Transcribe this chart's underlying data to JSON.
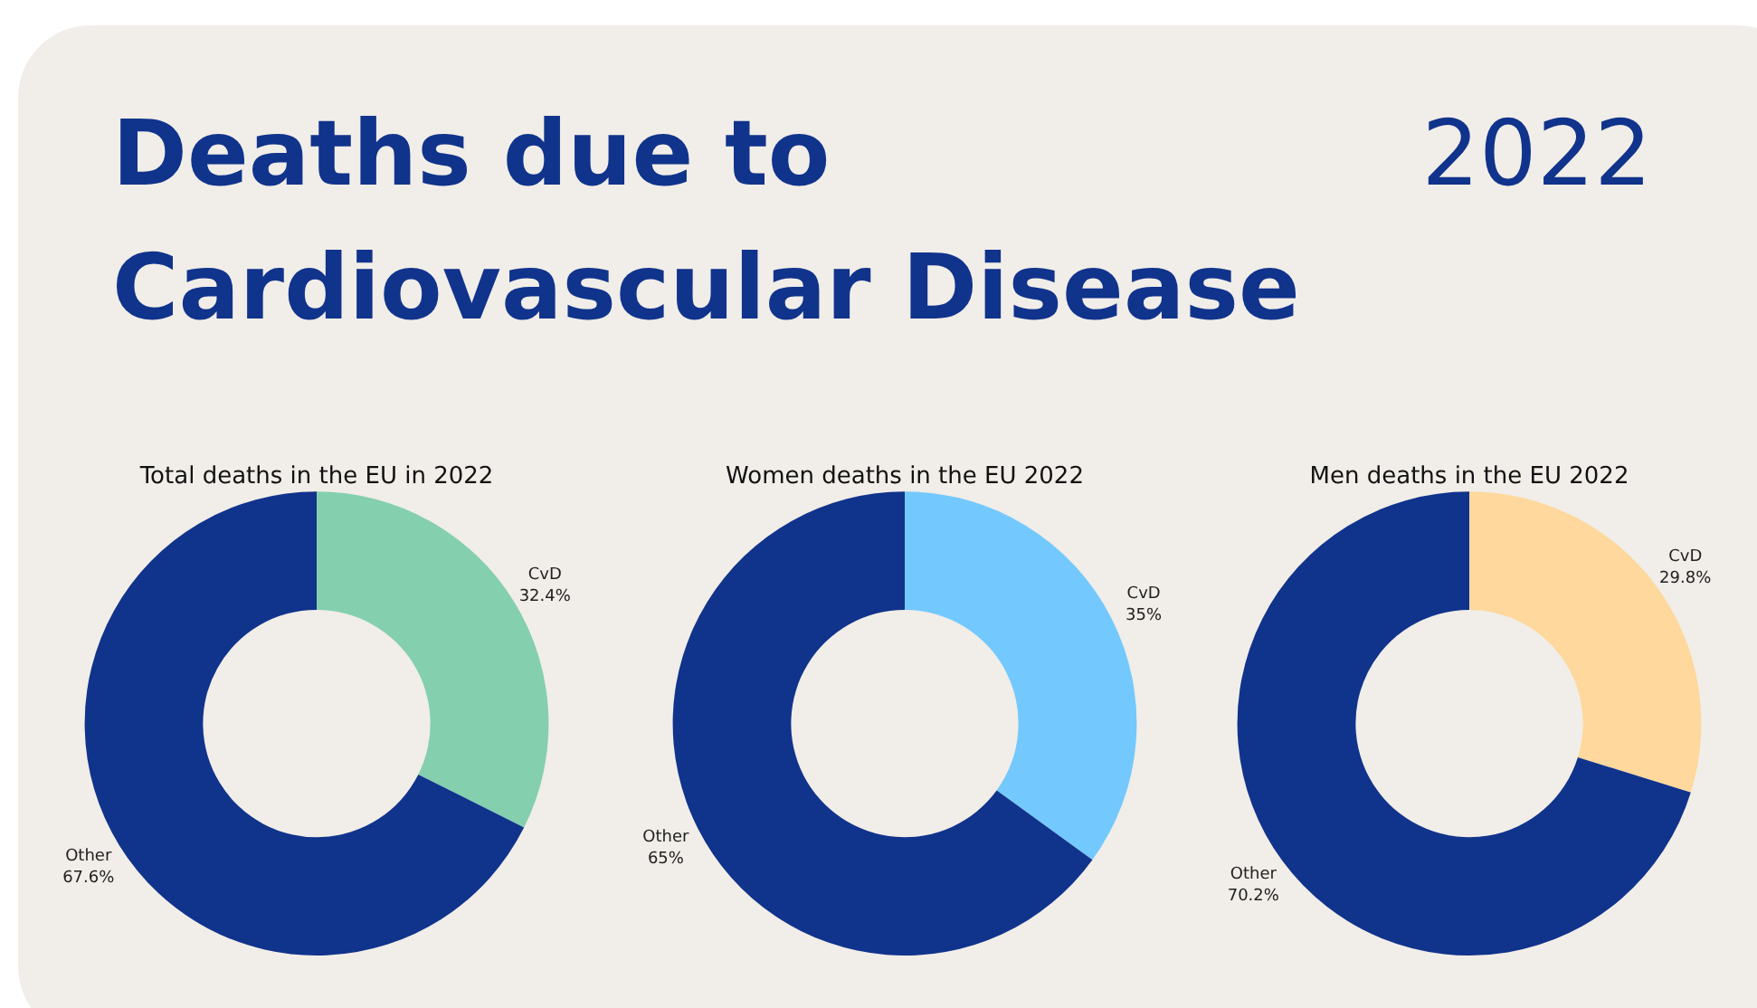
{
  "chart_data": [
    {
      "type": "other",
      "title": "Deaths due to Cardiovascular Disease",
      "annotations": [
        "2022"
      ]
    },
    {
      "type": "donut",
      "title": "Total deaths in the EU in 2022",
      "categories": [
        "CvD",
        "Other"
      ],
      "values": [
        32.4,
        67.6
      ],
      "value_labels": [
        "32.4%",
        "67.6%"
      ],
      "colors": [
        "#84cfae",
        "#10338c"
      ]
    },
    {
      "type": "donut",
      "title": "Women deaths in the EU 2022",
      "categories": [
        "CvD",
        "Other"
      ],
      "values": [
        35,
        65
      ],
      "value_labels": [
        "35%",
        "65%"
      ],
      "colors": [
        "#73c9fd",
        "#10338c"
      ]
    },
    {
      "type": "donut",
      "title": "Men deaths in the EU 2022",
      "categories": [
        "CvD",
        "Other"
      ],
      "values": [
        29.8,
        70.2
      ],
      "value_labels": [
        "29.8%",
        "70.2%"
      ],
      "colors": [
        "#fed89c",
        "#10338c"
      ]
    }
  ]
}
